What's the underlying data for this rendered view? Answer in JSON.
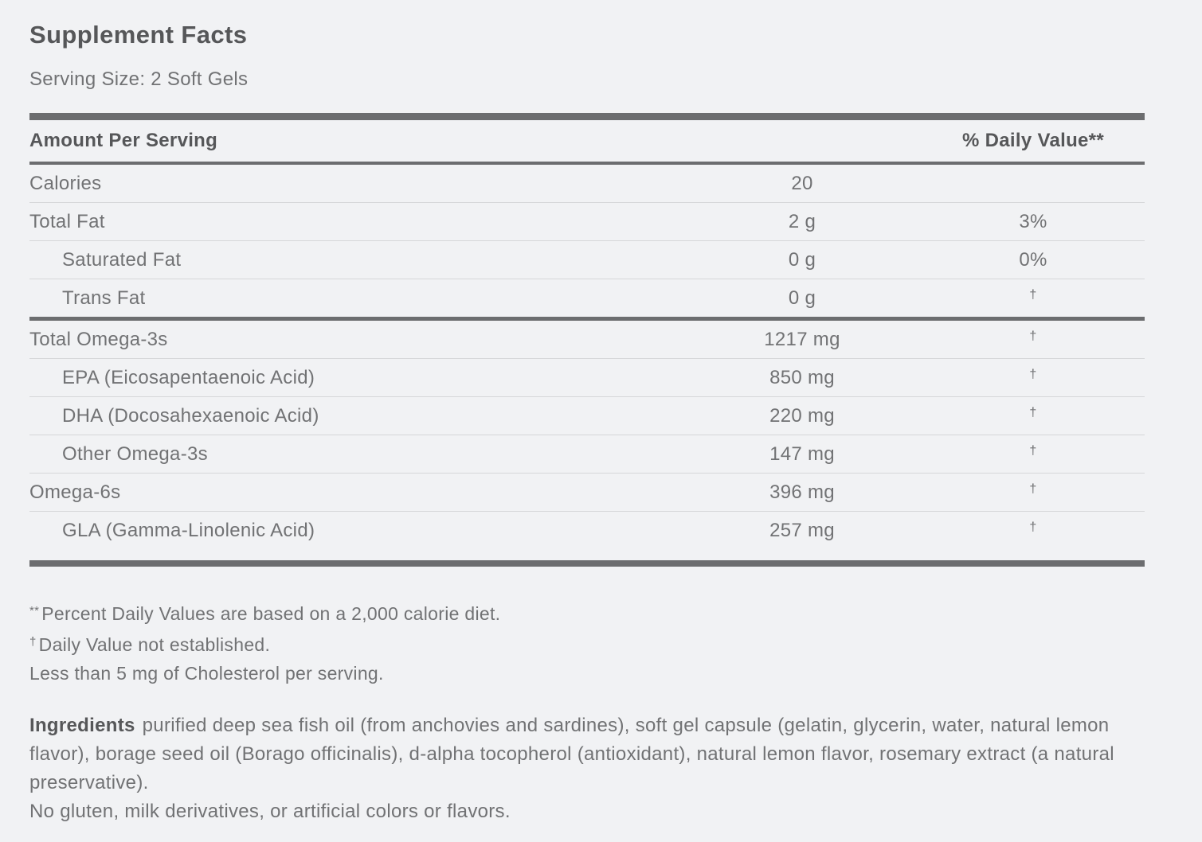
{
  "label": {
    "title": "Supplement Facts",
    "serving_size": "Serving Size: 2 Soft Gels",
    "table": {
      "col_amount_header": "Amount Per Serving",
      "col_dv_header": "% Daily Value**",
      "rows": [
        {
          "name": "Calories",
          "amount": "20",
          "dv": "",
          "indent": false,
          "divider_after": "thin"
        },
        {
          "name": "Total Fat",
          "amount": "2 g",
          "dv": "3%",
          "indent": false,
          "divider_after": "thin"
        },
        {
          "name": "Saturated Fat",
          "amount": "0 g",
          "dv": "0%",
          "indent": true,
          "divider_after": "thin"
        },
        {
          "name": "Trans Fat",
          "amount": "0 g",
          "dv": "†",
          "indent": true,
          "divider_after": "thick"
        },
        {
          "name": "Total Omega-3s",
          "amount": "1217 mg",
          "dv": "†",
          "indent": false,
          "divider_after": "thin"
        },
        {
          "name": "EPA (Eicosapentaenoic Acid)",
          "amount": "850 mg",
          "dv": "†",
          "indent": true,
          "divider_after": "thin"
        },
        {
          "name": "DHA (Docosahexaenoic Acid)",
          "amount": "220 mg",
          "dv": "†",
          "indent": true,
          "divider_after": "thin"
        },
        {
          "name": "Other Omega-3s",
          "amount": "147 mg",
          "dv": "†",
          "indent": true,
          "divider_after": "thin"
        },
        {
          "name": "Omega-6s",
          "amount": "396 mg",
          "dv": "†",
          "indent": false,
          "divider_after": "thin"
        },
        {
          "name": "GLA (Gamma-Linolenic Acid)",
          "amount": "257 mg",
          "dv": "†",
          "indent": true,
          "divider_after": "none"
        }
      ]
    },
    "footnotes": [
      {
        "marker": "**",
        "text": "Percent Daily Values are based on a 2,000 calorie diet."
      },
      {
        "marker": "†",
        "text": "Daily Value not established."
      },
      {
        "marker": "",
        "text": "Less than 5 mg of Cholesterol per serving."
      }
    ],
    "ingredients": {
      "label": "Ingredients",
      "text": "purified deep sea fish oil (from anchovies and sardines), soft gel capsule (gelatin, glycerin, water, natural lemon flavor), borage seed oil (Borago officinalis), d-alpha tocopherol (antioxidant), natural lemon flavor, rosemary extract (a natural preservative).",
      "allergen_note": "No gluten, milk derivatives, or artificial colors or flavors."
    },
    "colors": {
      "background": "#f1f2f4",
      "body_text": "#717274",
      "heading_text": "#565759",
      "rule_dark": "#6c6d6f",
      "rule_thin": "#d6d7d9"
    }
  }
}
